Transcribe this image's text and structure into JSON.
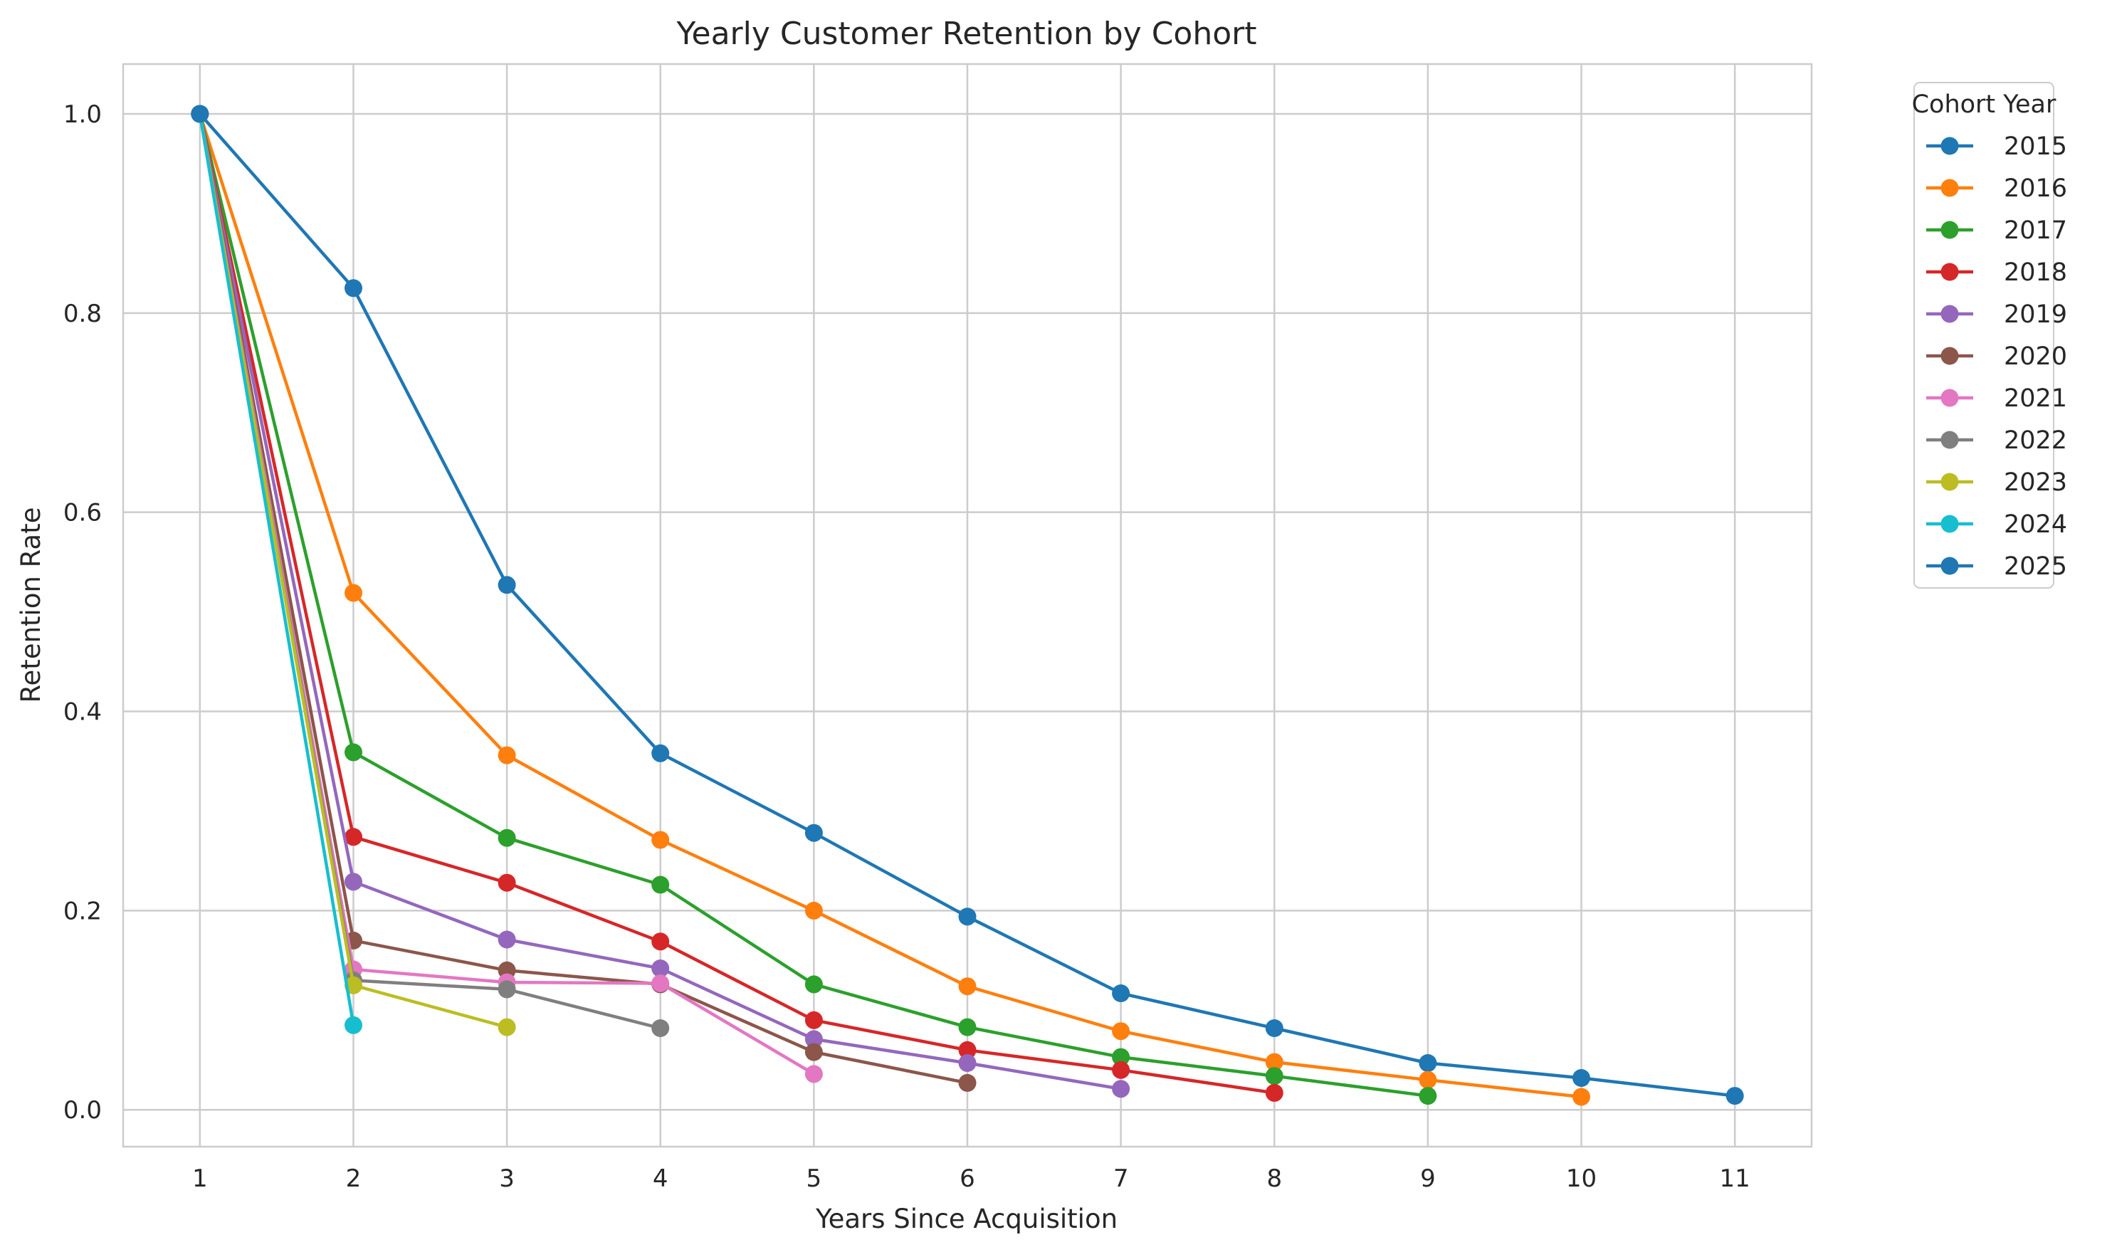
{
  "chart_data": {
    "type": "line",
    "title": "Yearly Customer Retention by Cohort",
    "xlabel": "Years Since Acquisition",
    "ylabel": "Retention Rate",
    "xlim": [
      0.5,
      11.5
    ],
    "ylim": [
      -0.037,
      1.05
    ],
    "x_ticks": [
      1,
      2,
      3,
      4,
      5,
      6,
      7,
      8,
      9,
      10,
      11
    ],
    "y_ticks": [
      0.0,
      0.2,
      0.4,
      0.6,
      0.8,
      1.0
    ],
    "y_tick_labels": [
      "0.0",
      "0.2",
      "0.4",
      "0.6",
      "0.8",
      "1.0"
    ],
    "grid": true,
    "legend": {
      "title": "Cohort Year",
      "placement": "outside-top-right"
    },
    "series": [
      {
        "name": "2015",
        "color": "#1f77b4",
        "x": [
          1,
          2,
          3,
          4,
          5,
          6,
          7,
          8,
          9,
          10,
          11
        ],
        "values": [
          1.0,
          0.825,
          0.527,
          0.358,
          0.278,
          0.194,
          0.117,
          0.082,
          0.047,
          0.032,
          0.014
        ]
      },
      {
        "name": "2016",
        "color": "#ff7f0e",
        "x": [
          1,
          2,
          3,
          4,
          5,
          6,
          7,
          8,
          9,
          10
        ],
        "values": [
          1.0,
          0.519,
          0.356,
          0.271,
          0.2,
          0.124,
          0.079,
          0.048,
          0.03,
          0.013
        ]
      },
      {
        "name": "2017",
        "color": "#2ca02c",
        "x": [
          1,
          2,
          3,
          4,
          5,
          6,
          7,
          8,
          9
        ],
        "values": [
          1.0,
          0.359,
          0.273,
          0.226,
          0.126,
          0.083,
          0.053,
          0.034,
          0.014
        ]
      },
      {
        "name": "2018",
        "color": "#d62728",
        "x": [
          1,
          2,
          3,
          4,
          5,
          6,
          7,
          8
        ],
        "values": [
          1.0,
          0.274,
          0.228,
          0.169,
          0.09,
          0.06,
          0.04,
          0.017
        ]
      },
      {
        "name": "2019",
        "color": "#9467bd",
        "x": [
          1,
          2,
          3,
          4,
          5,
          6,
          7
        ],
        "values": [
          1.0,
          0.229,
          0.171,
          0.142,
          0.071,
          0.047,
          0.021
        ]
      },
      {
        "name": "2020",
        "color": "#8c564b",
        "x": [
          1,
          2,
          3,
          4,
          5,
          6
        ],
        "values": [
          1.0,
          0.17,
          0.14,
          0.126,
          0.058,
          0.027
        ]
      },
      {
        "name": "2021",
        "color": "#e377c2",
        "x": [
          1,
          2,
          3,
          4,
          5
        ],
        "values": [
          1.0,
          0.141,
          0.128,
          0.127,
          0.036
        ]
      },
      {
        "name": "2022",
        "color": "#7f7f7f",
        "x": [
          1,
          2,
          3,
          4
        ],
        "values": [
          1.0,
          0.13,
          0.121,
          0.082
        ]
      },
      {
        "name": "2023",
        "color": "#bcbd22",
        "x": [
          1,
          2,
          3
        ],
        "values": [
          1.0,
          0.125,
          0.083
        ]
      },
      {
        "name": "2024",
        "color": "#17becf",
        "x": [
          1,
          2
        ],
        "values": [
          1.0,
          0.085
        ]
      },
      {
        "name": "2025",
        "color": "#1f77b4",
        "x": [
          1
        ],
        "values": [
          1.0
        ]
      }
    ]
  }
}
